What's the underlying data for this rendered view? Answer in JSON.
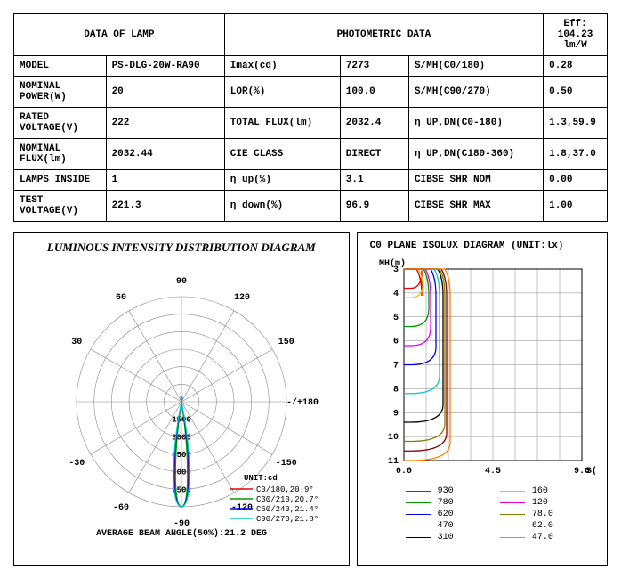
{
  "header": {
    "left_title": "DATA OF LAMP",
    "right_title": "PHOTOMETRIC DATA",
    "eff_label": "Eff: 104.23 lm/W"
  },
  "left_rows": [
    {
      "k": "MODEL",
      "v": "PS-DLG-20W-RA90"
    },
    {
      "k": "NOMINAL POWER(W)",
      "v": "20"
    },
    {
      "k": "RATED VOLTAGE(V)",
      "v": "222"
    },
    {
      "k": "NOMINAL FLUX(lm)",
      "v": "2032.44"
    },
    {
      "k": "LAMPS INSIDE",
      "v": "1"
    },
    {
      "k": "TEST VOLTAGE(V)",
      "v": "221.3"
    }
  ],
  "mid_rows": [
    {
      "k": "Imax(cd)",
      "v": "7273"
    },
    {
      "k": "LOR(%)",
      "v": "100.0"
    },
    {
      "k": "TOTAL FLUX(lm)",
      "v": "2032.4"
    },
    {
      "k": "CIE CLASS",
      "v": "DIRECT"
    },
    {
      "k": "η up(%)",
      "v": "3.1"
    },
    {
      "k": "η down(%)",
      "v": "96.9"
    }
  ],
  "right_rows": [
    {
      "k": "S/MH(C0/180)",
      "v": "0.28"
    },
    {
      "k": "S/MH(C90/270)",
      "v": "0.50"
    },
    {
      "k": "η UP,DN(C0-180)",
      "v": "1.3,59.9"
    },
    {
      "k": "η UP,DN(C180-360)",
      "v": "1.8,37.0"
    },
    {
      "k": "CIBSE SHR NOM",
      "v": "0.00"
    },
    {
      "k": "CIBSE SHR MAX",
      "v": "1.00"
    }
  ],
  "polar": {
    "title": "LUMINOUS INTENSITY DISTRIBUTION DIAGRAM",
    "unit_label": "UNIT:cd",
    "beam_label": "AVERAGE BEAM ANGLE(50%):21.2 DEG",
    "angle_labels": [
      "-/+180",
      "-150",
      "150",
      "-120",
      "120",
      "-90",
      "90",
      "-60",
      "60",
      "-30",
      "30"
    ],
    "radial_ticks": [
      "1500",
      "3000",
      "4500",
      "6000",
      "7500"
    ],
    "legend": [
      {
        "color": "#e60000",
        "label": "C0/180,20.9°"
      },
      {
        "color": "#009900",
        "label": "C30/210,20.7°"
      },
      {
        "color": "#0000e6",
        "label": "C60/240,21.4°"
      },
      {
        "color": "#00cccc",
        "label": "C90/270,21.8°"
      }
    ],
    "grid_color": "#888",
    "rings": 6,
    "spokes": 12
  },
  "isolux": {
    "title": "C0 PLANE ISOLUX DIAGRAM (UNIT:lx)",
    "y_label": "MH(m)",
    "x_label": "S(m)",
    "y_ticks": [
      "3",
      "4",
      "5",
      "6",
      "7",
      "8",
      "9",
      "10",
      "11"
    ],
    "x_ticks": [
      "0.0",
      "4.5",
      "9.0"
    ],
    "grid_color": "#888",
    "legend": [
      {
        "color": "#e60000",
        "label": "930"
      },
      {
        "color": "#cccc00",
        "label": "160"
      },
      {
        "color": "#009900",
        "label": "780"
      },
      {
        "color": "#e600e6",
        "label": "120"
      },
      {
        "color": "#0000e6",
        "label": "620"
      },
      {
        "color": "#808000",
        "label": "78.0"
      },
      {
        "color": "#00cccc",
        "label": "470"
      },
      {
        "color": "#800000",
        "label": "62.0"
      },
      {
        "color": "#000000",
        "label": "310"
      },
      {
        "color": "#ff8000",
        "label": "47.0"
      }
    ]
  }
}
